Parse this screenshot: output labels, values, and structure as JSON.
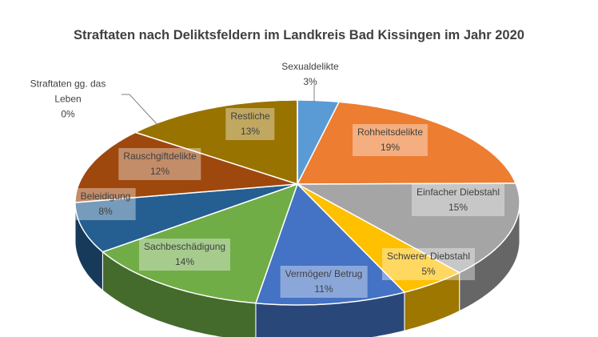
{
  "chart_data": {
    "type": "pie",
    "title": "Straftaten nach Deliktsfeldern im Landkreis Bad Kissingen im Jahr 2020",
    "three_d": true,
    "start": "top",
    "direction": "clockwise",
    "slices": [
      {
        "label": "Sexualdelikte",
        "value": 3,
        "text": "3%",
        "color": "#5B9BD5"
      },
      {
        "label": "Rohheitsdelikte",
        "value": 19,
        "text": "19%",
        "color": "#ED7D31"
      },
      {
        "label": "Einfacher Diebstahl",
        "value": 15,
        "text": "15%",
        "color": "#A5A5A5"
      },
      {
        "label": "Schwerer Diebstahl",
        "value": 5,
        "text": "5%",
        "color": "#FFC000"
      },
      {
        "label": "Vermögen/ Betrug",
        "value": 11,
        "text": "11%",
        "color": "#4472C4"
      },
      {
        "label": "Sachbeschädigung",
        "value": 14,
        "text": "14%",
        "color": "#70AD47"
      },
      {
        "label": "Beleidigung",
        "value": 8,
        "text": "8%",
        "color": "#255E91"
      },
      {
        "label": "Rauschgiftdelikte",
        "value": 12,
        "text": "12%",
        "color": "#9E480E"
      },
      {
        "label": "Restliche",
        "value": 13,
        "text": "13%",
        "color": "#997300"
      },
      {
        "label": "Straftaten gg. das Leben",
        "value": 0,
        "text": "0%",
        "color": "#636363"
      }
    ]
  }
}
